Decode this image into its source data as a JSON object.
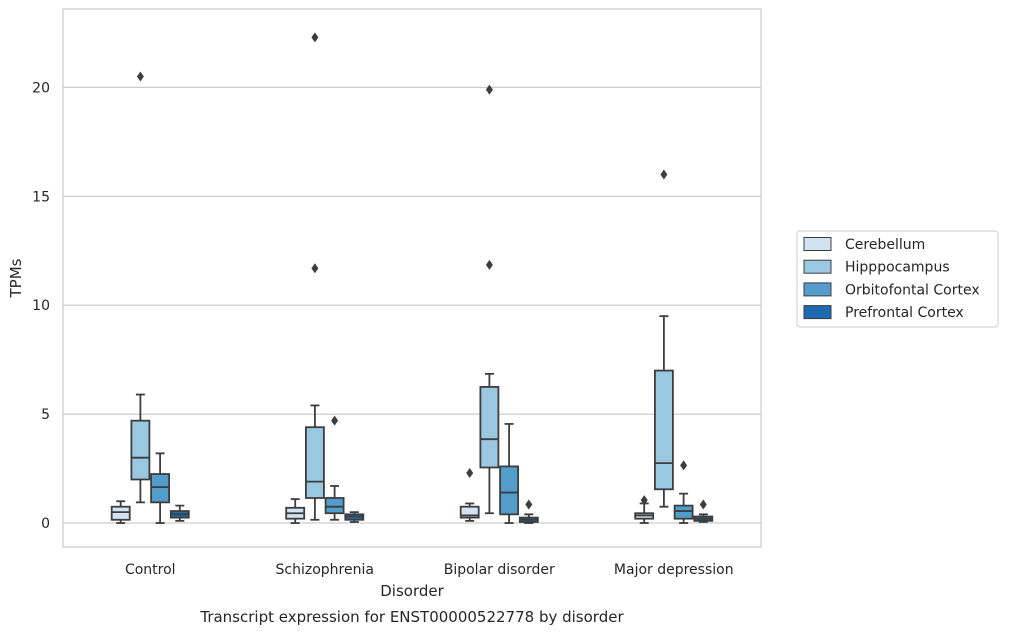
{
  "chart_data": {
    "type": "box",
    "title": "Transcript expression for ENST00000522778 by disorder",
    "xlabel": "Disorder",
    "ylabel": "TPMs",
    "ylim": [
      -1.1,
      23.6
    ],
    "yticks": [
      0,
      5,
      10,
      15,
      20
    ],
    "grid": "horizontal",
    "legend_position": "right",
    "categories": [
      "Control",
      "Schizophrenia",
      "Bipolar disorder",
      "Major depression"
    ],
    "series": [
      {
        "name": "Cerebellum",
        "color": "#d1e2f2",
        "boxes": [
          {
            "whisker_low": 0.0,
            "q1": 0.15,
            "median": 0.5,
            "q3": 0.75,
            "whisker_high": 1.0,
            "outliers": []
          },
          {
            "whisker_low": 0.0,
            "q1": 0.2,
            "median": 0.45,
            "q3": 0.7,
            "whisker_high": 1.1,
            "outliers": []
          },
          {
            "whisker_low": 0.1,
            "q1": 0.25,
            "median": 0.35,
            "q3": 0.75,
            "whisker_high": 0.9,
            "outliers": [
              2.3
            ]
          },
          {
            "whisker_low": 0.0,
            "q1": 0.2,
            "median": 0.35,
            "q3": 0.45,
            "whisker_high": 0.9,
            "outliers": [
              1.05
            ]
          }
        ]
      },
      {
        "name": "Hipppocampus",
        "color": "#9ac8e0",
        "boxes": [
          {
            "whisker_low": 0.95,
            "q1": 2.0,
            "median": 3.0,
            "q3": 4.7,
            "whisker_high": 5.9,
            "outliers": [
              20.5
            ]
          },
          {
            "whisker_low": 0.15,
            "q1": 1.15,
            "median": 1.9,
            "q3": 4.4,
            "whisker_high": 5.4,
            "outliers": [
              11.7,
              22.3
            ]
          },
          {
            "whisker_low": 0.45,
            "q1": 2.55,
            "median": 3.85,
            "q3": 6.25,
            "whisker_high": 6.85,
            "outliers": [
              11.85,
              19.9
            ]
          },
          {
            "whisker_low": 0.75,
            "q1": 1.55,
            "median": 2.75,
            "q3": 7.0,
            "whisker_high": 9.5,
            "outliers": [
              16.0
            ]
          }
        ]
      },
      {
        "name": "Orbitofontal Cortex",
        "color": "#529dcc",
        "boxes": [
          {
            "whisker_low": 0.0,
            "q1": 0.95,
            "median": 1.65,
            "q3": 2.25,
            "whisker_high": 3.2,
            "outliers": []
          },
          {
            "whisker_low": 0.15,
            "q1": 0.45,
            "median": 0.75,
            "q3": 1.15,
            "whisker_high": 1.7,
            "outliers": [
              4.7
            ]
          },
          {
            "whisker_low": 0.0,
            "q1": 0.4,
            "median": 1.4,
            "q3": 2.6,
            "whisker_high": 4.55,
            "outliers": []
          },
          {
            "whisker_low": 0.0,
            "q1": 0.2,
            "median": 0.55,
            "q3": 0.8,
            "whisker_high": 1.35,
            "outliers": [
              2.65
            ]
          }
        ]
      },
      {
        "name": "Prefrontal Cortex",
        "color": "#1c6aaf",
        "boxes": [
          {
            "whisker_low": 0.1,
            "q1": 0.25,
            "median": 0.4,
            "q3": 0.55,
            "whisker_high": 0.8,
            "outliers": []
          },
          {
            "whisker_low": 0.05,
            "q1": 0.15,
            "median": 0.3,
            "q3": 0.4,
            "whisker_high": 0.5,
            "outliers": []
          },
          {
            "whisker_low": 0.0,
            "q1": 0.05,
            "median": 0.15,
            "q3": 0.25,
            "whisker_high": 0.4,
            "outliers": [
              0.85
            ]
          },
          {
            "whisker_low": 0.05,
            "q1": 0.1,
            "median": 0.2,
            "q3": 0.3,
            "whisker_high": 0.4,
            "outliers": [
              0.85
            ]
          }
        ]
      }
    ]
  }
}
